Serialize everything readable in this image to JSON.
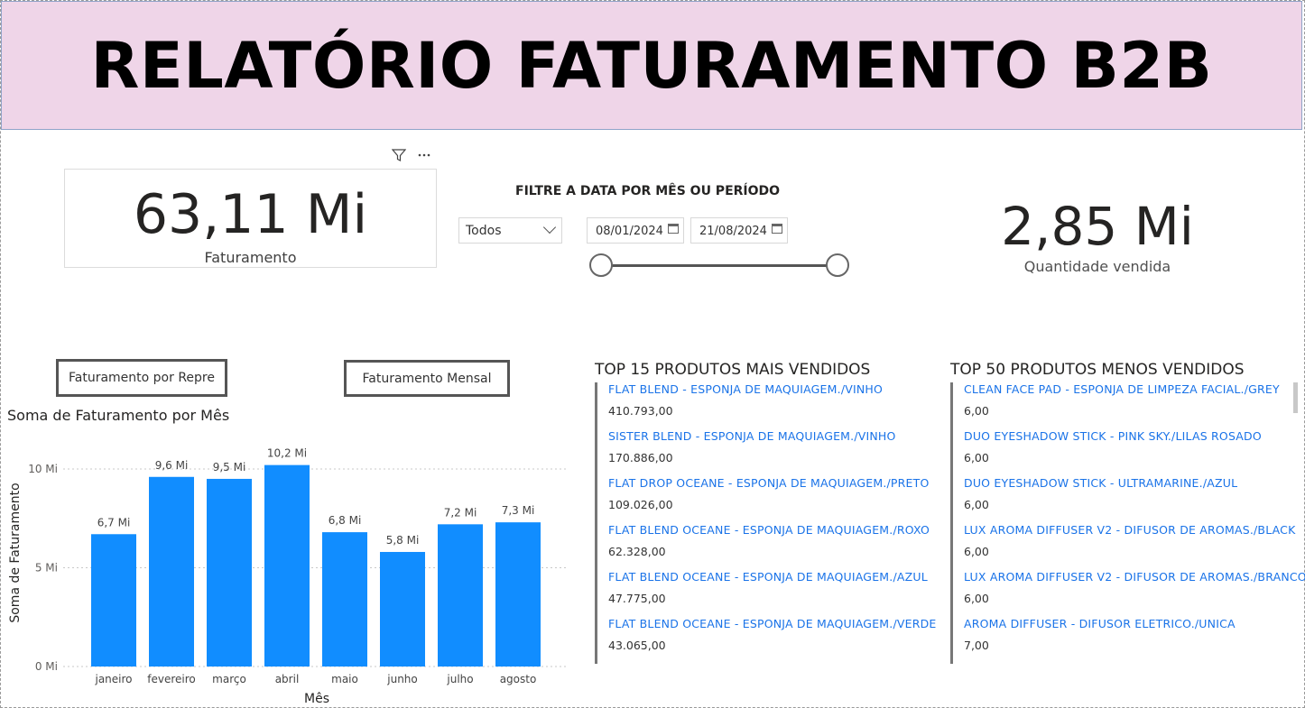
{
  "header": {
    "title": "RELATÓRIO FATURAMENTO B2B"
  },
  "kpi_revenue": {
    "value": "63,11 Mi",
    "label": "Faturamento"
  },
  "kpi_quantity": {
    "value": "2,85 Mi",
    "label": "Quantidade vendida"
  },
  "date_filter": {
    "title": "FILTRE A DATA POR MÊS OU PERÍODO",
    "dropdown_value": "Todos",
    "start_date": "08/01/2024",
    "end_date": "21/08/2024",
    "slider_start": 0,
    "slider_end": 1
  },
  "buttons": {
    "by_rep": "Faturamento por Repre",
    "monthly": "Faturamento Mensal"
  },
  "chart_data": {
    "type": "bar",
    "title": "Soma de Faturamento por Mês",
    "xlabel": "Mês",
    "ylabel": "Soma de Faturamento",
    "categories": [
      "janeiro",
      "fevereiro",
      "março",
      "abril",
      "maio",
      "junho",
      "julho",
      "agosto"
    ],
    "values": [
      6.7,
      9.6,
      9.5,
      10.2,
      6.8,
      5.8,
      7.2,
      7.3
    ],
    "data_labels": [
      "6,7 Mi",
      "9,6 Mi",
      "9,5 Mi",
      "10,2 Mi",
      "6,8 Mi",
      "5,8 Mi",
      "7,2 Mi",
      "7,3 Mi"
    ],
    "ylim": [
      0,
      10
    ],
    "yticks": [
      0,
      5,
      10
    ],
    "ytick_labels": [
      "0 Mi",
      "5 Mi",
      "10 Mi"
    ],
    "color": "#118dff",
    "grid": true
  },
  "top_products": {
    "title": "TOP 15 PRODUTOS MAIS VENDIDOS",
    "items": [
      {
        "name": "FLAT BLEND - ESPONJA DE MAQUIAGEM./VINHO",
        "value": "410.793,00"
      },
      {
        "name": "SISTER BLEND - ESPONJA DE MAQUIAGEM./VINHO",
        "value": "170.886,00"
      },
      {
        "name": "FLAT DROP OCEANE - ESPONJA DE MAQUIAGEM./PRETO",
        "value": "109.026,00"
      },
      {
        "name": "FLAT BLEND OCEANE - ESPONJA DE MAQUIAGEM./ROXO",
        "value": "62.328,00"
      },
      {
        "name": "FLAT BLEND OCEANE - ESPONJA DE MAQUIAGEM./AZUL",
        "value": "47.775,00"
      },
      {
        "name": "FLAT BLEND OCEANE - ESPONJA DE MAQUIAGEM./VERDE",
        "value": "43.065,00"
      }
    ]
  },
  "bottom_products": {
    "title": "TOP 50 PRODUTOS MENOS VENDIDOS",
    "items": [
      {
        "name": "CLEAN FACE PAD - ESPONJA DE LIMPEZA FACIAL./GREY",
        "value": "6,00"
      },
      {
        "name": "DUO EYESHADOW STICK - PINK SKY./LILAS ROSADO",
        "value": "6,00"
      },
      {
        "name": "DUO EYESHADOW STICK - ULTRAMARINE./AZUL",
        "value": "6,00"
      },
      {
        "name": "LUX AROMA DIFFUSER V2 - DIFUSOR DE AROMAS./BLACK",
        "value": "6,00"
      },
      {
        "name": "LUX AROMA DIFFUSER V2 - DIFUSOR DE AROMAS./BRANCO",
        "value": "6,00"
      },
      {
        "name": "AROMA DIFFUSER - DIFUSOR ELETRICO./UNICA",
        "value": "7,00"
      }
    ]
  }
}
